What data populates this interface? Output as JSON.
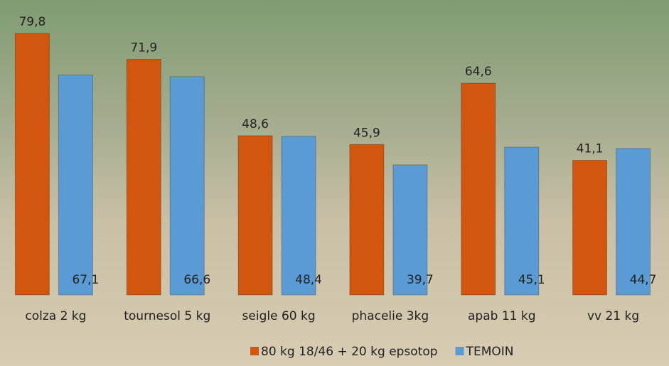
{
  "chart_data": {
    "type": "bar",
    "categories": [
      "colza 2 kg",
      "tournesol 5 kg",
      "seigle 60 kg",
      "phacelie 3kg",
      "apab 11 kg",
      "vv 21 kg"
    ],
    "series": [
      {
        "name": "80 kg 18/46 + 20 kg epsotop",
        "color": "#d2560e",
        "values": [
          79.8,
          71.9,
          48.6,
          45.9,
          64.6,
          41.1
        ],
        "value_labels": [
          "79,8",
          "71,9",
          "48,6",
          "45,9",
          "64,6",
          "41,1"
        ]
      },
      {
        "name": "TEMOIN",
        "color": "#5b9bd5",
        "values": [
          67.1,
          66.6,
          48.4,
          39.7,
          45.1,
          44.7
        ],
        "value_labels": [
          "67,1",
          "66,6",
          "48,4",
          "39,7",
          "45,1",
          "44,7"
        ]
      }
    ],
    "ylim": [
      0,
      90
    ]
  }
}
